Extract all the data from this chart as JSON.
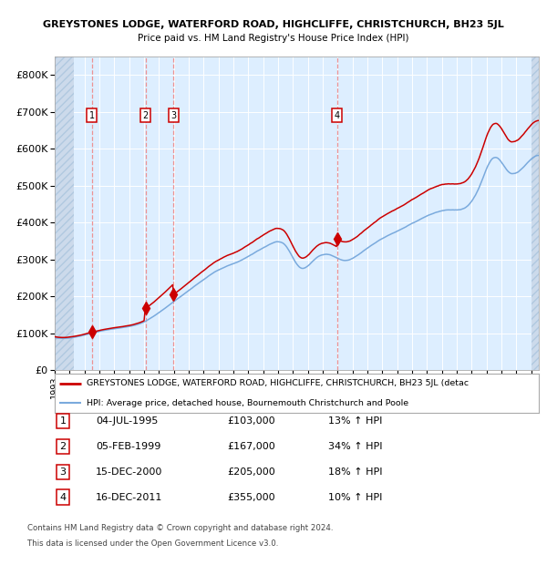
{
  "title1": "GREYSTONES LODGE, WATERFORD ROAD, HIGHCLIFFE, CHRISTCHURCH, BH23 5JL",
  "title2": "Price paid vs. HM Land Registry's House Price Index (HPI)",
  "legend_line1": "GREYSTONES LODGE, WATERFORD ROAD, HIGHCLIFFE, CHRISTCHURCH, BH23 5JL (detac",
  "legend_line2": "HPI: Average price, detached house, Bournemouth Christchurch and Poole",
  "sales": [
    {
      "num": 1,
      "date": "04-JUL-1995",
      "year": 1995.5,
      "price": 103000,
      "pct": "13%",
      "dir": "↑"
    },
    {
      "num": 2,
      "date": "05-FEB-1999",
      "year": 1999.1,
      "price": 167000,
      "pct": "34%",
      "dir": "↑"
    },
    {
      "num": 3,
      "date": "15-DEC-2000",
      "year": 2000.96,
      "price": 205000,
      "pct": "18%",
      "dir": "↑"
    },
    {
      "num": 4,
      "date": "16-DEC-2011",
      "year": 2011.96,
      "price": 355000,
      "pct": "10%",
      "dir": "↑"
    }
  ],
  "hpi_color": "#7aaadd",
  "property_color": "#cc0000",
  "dashed_color": "#ee8888",
  "background_chart": "#ddeeff",
  "ylim": [
    0,
    850000
  ],
  "yticks": [
    0,
    100000,
    200000,
    300000,
    400000,
    500000,
    600000,
    700000,
    800000
  ],
  "xlim_start": 1993.0,
  "xlim_end": 2025.5,
  "footnote1": "Contains HM Land Registry data © Crown copyright and database right 2024.",
  "footnote2": "This data is licensed under the Open Government Licence v3.0."
}
